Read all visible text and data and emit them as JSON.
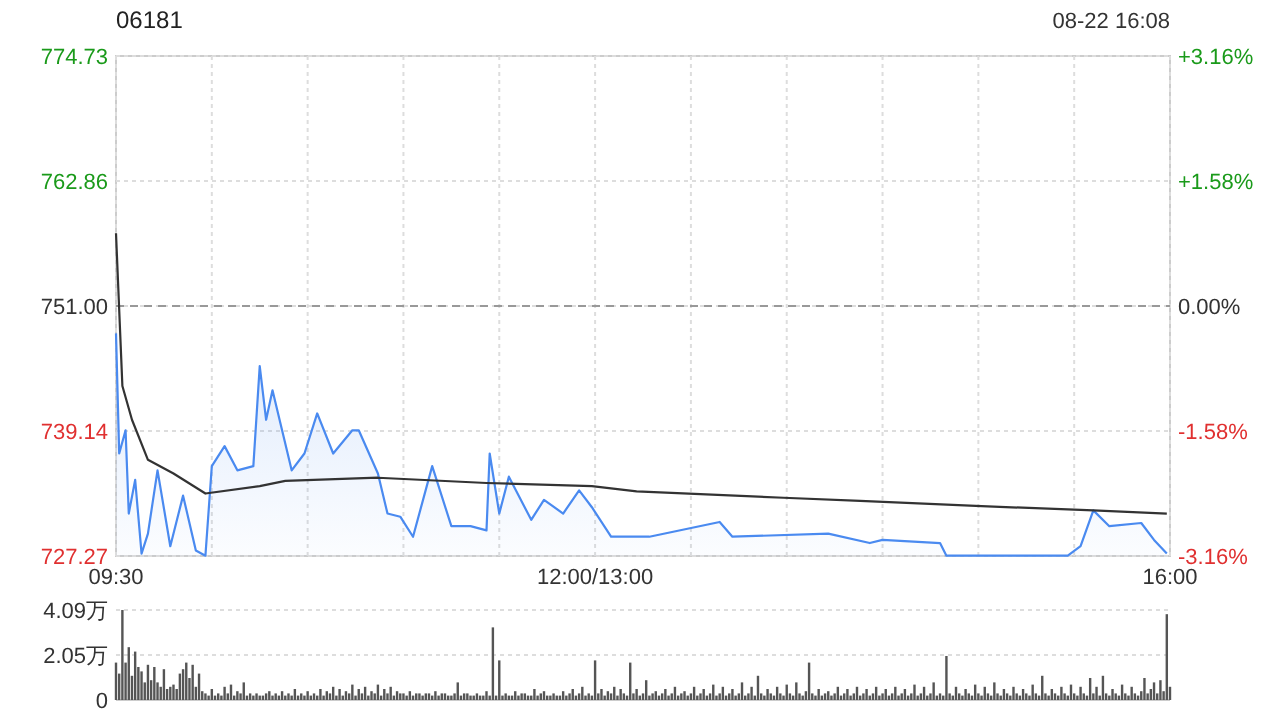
{
  "chart_data": {
    "type": "line",
    "title": "06181",
    "annotations": [
      "08-22 16:08"
    ],
    "categories": [
      "09:30",
      null,
      null,
      null,
      null,
      null,
      null,
      null,
      null,
      null,
      null,
      null,
      null,
      null,
      null,
      null,
      null,
      null,
      null,
      null,
      null,
      null,
      null,
      null,
      null,
      null,
      null,
      null,
      null,
      null,
      null,
      null,
      null,
      null,
      null,
      null,
      null,
      null,
      null,
      null,
      null,
      null,
      null,
      null,
      null,
      null,
      null,
      null,
      null,
      null,
      null,
      null,
      null,
      null,
      null,
      null,
      null,
      null,
      null,
      null,
      null,
      null,
      null,
      null,
      null,
      null,
      null,
      null,
      null,
      null,
      null,
      null,
      null,
      null,
      null,
      null,
      null,
      null,
      null,
      null,
      null,
      null,
      null,
      null,
      null,
      null,
      null,
      null,
      null,
      null,
      null,
      null,
      null,
      null,
      null,
      null,
      null,
      null,
      null,
      null,
      null,
      null,
      null,
      null,
      null,
      null,
      null,
      null,
      null,
      null,
      null,
      null,
      null,
      null,
      null,
      null,
      null,
      null,
      null,
      null,
      null,
      null,
      null,
      null,
      null,
      null,
      null,
      null,
      null,
      null,
      null,
      null,
      null,
      null,
      null,
      null,
      null,
      null,
      null,
      null,
      null,
      null,
      null,
      null,
      null,
      null,
      null,
      null,
      null,
      null,
      "12:00/13:00",
      null,
      null,
      null,
      null,
      null,
      null,
      null,
      null,
      null,
      null,
      null,
      null,
      null,
      null,
      null,
      null,
      null,
      null,
      null,
      null,
      null,
      null,
      null,
      null,
      null,
      null,
      null,
      null,
      null,
      null,
      null,
      null,
      null,
      null,
      null,
      null,
      null,
      null,
      null,
      null,
      null,
      null,
      null,
      null,
      null,
      null,
      null,
      null,
      null,
      null,
      null,
      null,
      null,
      null,
      null,
      null,
      null,
      null,
      null,
      null,
      null,
      null,
      null,
      null,
      null,
      null,
      null,
      null,
      null,
      null,
      null,
      null,
      null,
      null,
      null,
      null,
      null,
      null,
      null,
      null,
      null,
      null,
      null,
      null,
      null,
      null,
      null,
      null,
      null,
      null,
      null,
      null,
      null,
      null,
      null,
      null,
      null,
      null,
      null,
      null,
      null,
      null,
      null,
      null,
      null,
      null,
      null,
      null,
      null,
      null,
      null,
      null,
      null,
      null,
      null,
      null,
      null,
      null,
      null,
      null,
      null,
      null,
      null,
      null,
      null,
      null,
      null,
      null,
      null,
      null,
      null,
      null,
      null,
      null,
      null,
      null,
      null,
      null,
      null,
      null,
      null,
      null,
      null,
      null,
      null,
      null,
      null,
      null,
      null,
      null,
      null,
      null,
      null,
      null,
      null,
      null,
      null,
      null,
      null,
      null,
      null,
      null,
      null,
      null,
      null,
      null,
      null,
      null,
      null,
      null,
      null,
      null,
      null,
      null,
      null,
      null,
      null,
      null,
      null,
      "16:00"
    ],
    "ylim": [
      727.27,
      774.73
    ],
    "yticks": [
      727.27,
      739.14,
      {
        "value": 751,
        "label": "751.00"
      },
      762.86,
      774.73
    ],
    "y2lim": [
      -3.16,
      3.16
    ],
    "y2ticks": [
      {
        "value": -3.16,
        "label": "-3.16%"
      },
      {
        "value": -1.58,
        "label": "-1.58%"
      },
      {
        "value": 0,
        "label": "0.00%"
      },
      {
        "value": 1.58,
        "label": "+1.58%"
      },
      {
        "value": 3.16,
        "label": "+3.16%"
      }
    ],
    "y3lim": [
      0,
      4.09
    ],
    "y3ticks": [
      0,
      {
        "value": 2.05,
        "label": "2.05万"
      },
      {
        "value": 4.09,
        "label": "4.09万"
      }
    ],
    "grid": true,
    "marker": "none",
    "ref_lines": [
      {
        "axis": "y",
        "value": 751,
        "color": "#999999",
        "line_style": "dashed"
      }
    ],
    "series": [
      {
        "type": "area",
        "color": "#4a8af0",
        "values": [
          748.4,
          737.0,
          null,
          739.2,
          731.3,
          null,
          734.5,
          null,
          727.5,
          null,
          729.4,
          null,
          null,
          735.4,
          null,
          null,
          null,
          728.2,
          null,
          null,
          null,
          733.0,
          null,
          null,
          null,
          727.8,
          null,
          null,
          727.3,
          null,
          735.8,
          null,
          null,
          null,
          737.7,
          null,
          null,
          null,
          735.4,
          null,
          null,
          null,
          null,
          735.8,
          null,
          745.3,
          null,
          740.2,
          null,
          743.0,
          null,
          null,
          null,
          null,
          null,
          735.4,
          null,
          null,
          null,
          737.0,
          null,
          null,
          null,
          740.8,
          null,
          null,
          null,
          null,
          737.0,
          null,
          null,
          null,
          null,
          null,
          739.2,
          null,
          739.2,
          null,
          null,
          null,
          null,
          null,
          735.1,
          null,
          null,
          731.3,
          null,
          null,
          null,
          731.0,
          null,
          null,
          null,
          729.1,
          null,
          null,
          null,
          null,
          null,
          735.8,
          null,
          null,
          null,
          null,
          null,
          730.1,
          null,
          null,
          null,
          null,
          null,
          730.1,
          null,
          null,
          null,
          null,
          729.7,
          737.0,
          null,
          null,
          731.3,
          null,
          null,
          734.8,
          null,
          null,
          null,
          null,
          null,
          null,
          730.7,
          null,
          null,
          null,
          732.6,
          null,
          null,
          null,
          null,
          null,
          731.3,
          null,
          null,
          null,
          null,
          733.5,
          null,
          null,
          null,
          731.9,
          null,
          null,
          null,
          null,
          null,
          729.1,
          null,
          null,
          null,
          null,
          null,
          null,
          null,
          null,
          null,
          null,
          null,
          729.1,
          null,
          null,
          null,
          null,
          null,
          null,
          null,
          null,
          null,
          null,
          null,
          null,
          null,
          null,
          null,
          null,
          null,
          null,
          null,
          null,
          null,
          730.5,
          null,
          null,
          null,
          729.1,
          null,
          null,
          null,
          null,
          null,
          null,
          null,
          null,
          null,
          null,
          null,
          null,
          null,
          null,
          null,
          null,
          null,
          null,
          null,
          null,
          null,
          null,
          null,
          null,
          null,
          null,
          null,
          null,
          null,
          729.4,
          null,
          null,
          null,
          null,
          null,
          null,
          null,
          null,
          null,
          null,
          null,
          null,
          728.5,
          null,
          null,
          null,
          728.8,
          null,
          null,
          null,
          null,
          null,
          null,
          null,
          null,
          null,
          null,
          null,
          null,
          null,
          null,
          null,
          null,
          null,
          728.5,
          null,
          727.3,
          null,
          null,
          null,
          null,
          null,
          null,
          null,
          null,
          null,
          null,
          null,
          null,
          null,
          null,
          null,
          null,
          null,
          null,
          null,
          null,
          null,
          null,
          null,
          null,
          null,
          null,
          null,
          null,
          null,
          null,
          null,
          null,
          null,
          null,
          null,
          null,
          null,
          727.3,
          null,
          null,
          null,
          728.2,
          null,
          null,
          null,
          731.6,
          null,
          null,
          null,
          null,
          730.1,
          null,
          null,
          null,
          null,
          null,
          null,
          null,
          null,
          null,
          730.4,
          null,
          null,
          null,
          728.8,
          null,
          null,
          null,
          727.5,
          null
        ]
      },
      {
        "color": "#333333",
        "values": [
          757.9,
          null,
          743.4,
          null,
          null,
          740.2,
          null,
          null,
          null,
          null,
          736.4,
          null,
          null,
          null,
          null,
          null,
          null,
          null,
          735.1,
          null,
          null,
          null,
          null,
          null,
          null,
          null,
          null,
          null,
          733.2,
          null,
          null,
          null,
          null,
          null,
          null,
          null,
          null,
          null,
          null,
          null,
          null,
          null,
          null,
          null,
          null,
          733.9,
          null,
          null,
          null,
          null,
          null,
          null,
          null,
          734.4,
          null,
          null,
          null,
          null,
          null,
          null,
          null,
          null,
          null,
          null,
          null,
          null,
          null,
          null,
          null,
          null,
          null,
          null,
          null,
          null,
          null,
          null,
          null,
          null,
          null,
          null,
          null,
          null,
          734.7,
          null,
          null,
          null,
          null,
          null,
          null,
          null,
          null,
          null,
          null,
          null,
          null,
          null,
          null,
          null,
          null,
          null,
          null,
          null,
          null,
          null,
          null,
          null,
          null,
          null,
          null,
          null,
          null,
          null,
          null,
          null,
          null,
          null,
          734.2,
          null,
          null,
          null,
          null,
          null,
          null,
          null,
          null,
          null,
          null,
          null,
          null,
          null,
          null,
          null,
          null,
          null,
          null,
          null,
          null,
          null,
          null,
          null,
          null,
          null,
          null,
          null,
          null,
          null,
          null,
          null,
          null,
          733.9,
          null,
          null,
          null,
          null,
          null,
          null,
          null,
          null,
          null,
          null,
          null,
          null,
          null,
          733.4,
          null,
          null,
          null,
          null,
          null,
          null,
          null,
          null,
          null,
          null,
          null,
          null,
          null,
          null,
          null,
          null,
          null,
          null,
          null,
          null,
          null,
          null,
          null,
          null,
          null,
          null,
          null,
          null,
          null,
          null,
          null,
          null,
          null,
          null,
          null,
          null,
          null,
          null,
          null,
          null,
          null,
          null,
          null,
          null,
          null,
          732.8,
          null,
          null,
          null,
          null,
          null,
          null,
          null,
          null,
          null,
          null,
          null,
          null,
          null,
          null,
          null,
          null,
          null,
          null,
          null,
          null,
          null,
          null,
          null,
          732.5,
          null,
          null,
          null,
          null,
          null,
          null,
          null,
          null,
          null,
          null,
          null,
          null,
          null,
          null,
          null,
          null,
          null,
          null,
          null,
          null,
          null,
          null,
          null,
          null,
          null,
          null,
          null,
          null,
          null,
          null,
          null,
          null,
          null,
          null,
          null,
          null,
          null,
          732.0,
          null,
          null,
          null,
          null,
          null,
          null,
          null,
          null,
          null,
          null,
          null,
          null,
          null,
          null,
          null,
          null,
          null,
          null,
          null,
          null,
          null,
          null,
          null,
          null,
          null,
          null,
          null,
          null,
          null,
          null,
          null,
          null,
          null,
          null,
          731.6,
          null,
          null,
          null,
          null,
          null,
          null,
          null,
          null,
          null,
          null,
          null,
          null,
          null,
          null,
          null,
          null,
          null,
          null,
          null,
          null,
          null,
          null,
          731.3,
          null
        ]
      },
      {
        "type": "bar",
        "axis": "y3",
        "color": "#555555",
        "values": [
          1.7,
          1.2,
          4.09,
          1.7,
          2.4,
          1.1,
          2.2,
          1.5,
          1.3,
          0.8,
          1.6,
          0.9,
          1.5,
          0.8,
          0.6,
          1.4,
          0.5,
          0.6,
          0.7,
          0.5,
          1.2,
          1.4,
          1.7,
          1.0,
          1.6,
          0.6,
          1.2,
          0.4,
          0.3,
          0.2,
          0.5,
          0.2,
          0.3,
          0.2,
          0.6,
          0.3,
          0.7,
          0.2,
          0.4,
          0.3,
          0.8,
          0.2,
          0.3,
          0.2,
          0.3,
          0.2,
          0.2,
          0.3,
          0.4,
          0.2,
          0.3,
          0.2,
          0.4,
          0.2,
          0.3,
          0.2,
          0.5,
          0.2,
          0.3,
          0.2,
          0.4,
          0.2,
          0.3,
          0.2,
          0.5,
          0.2,
          0.4,
          0.3,
          0.6,
          0.2,
          0.5,
          0.2,
          0.4,
          0.3,
          0.7,
          0.2,
          0.5,
          0.3,
          0.6,
          0.2,
          0.4,
          0.3,
          0.7,
          0.2,
          0.5,
          0.3,
          0.6,
          0.2,
          0.4,
          0.3,
          0.3,
          0.2,
          0.4,
          0.2,
          0.3,
          0.3,
          0.2,
          0.3,
          0.3,
          0.2,
          0.4,
          0.2,
          0.3,
          0.3,
          0.2,
          0.2,
          0.3,
          0.8,
          0.2,
          0.3,
          0.3,
          0.2,
          0.2,
          0.3,
          0.2,
          0.2,
          0.4,
          0.2,
          3.3,
          0.2,
          1.8,
          0.2,
          0.3,
          0.2,
          0.2,
          0.4,
          0.2,
          0.3,
          0.3,
          0.2,
          0.2,
          0.5,
          0.2,
          0.3,
          0.4,
          0.2,
          0.2,
          0.3,
          0.2,
          0.2,
          0.4,
          0.2,
          0.3,
          0.5,
          0.2,
          0.3,
          0.6,
          0.2,
          0.3,
          0.2,
          1.8,
          0.3,
          0.5,
          0.2,
          0.4,
          0.3,
          0.6,
          0.2,
          0.5,
          0.3,
          0.2,
          1.7,
          0.3,
          0.5,
          0.2,
          0.3,
          0.9,
          0.2,
          0.3,
          0.4,
          0.2,
          0.3,
          0.5,
          0.2,
          0.3,
          0.6,
          0.2,
          0.3,
          0.4,
          0.2,
          0.3,
          0.6,
          0.2,
          0.3,
          0.5,
          0.2,
          0.3,
          0.7,
          0.2,
          0.3,
          0.6,
          0.2,
          0.3,
          0.5,
          0.2,
          0.3,
          0.8,
          0.2,
          0.3,
          0.6,
          0.2,
          1.1,
          0.3,
          0.2,
          0.5,
          0.3,
          0.2,
          0.6,
          0.3,
          0.2,
          0.7,
          0.3,
          0.2,
          0.8,
          0.3,
          0.2,
          0.4,
          1.7,
          0.3,
          0.2,
          0.5,
          0.2,
          0.3,
          0.4,
          0.2,
          0.3,
          0.6,
          0.2,
          0.3,
          0.5,
          0.2,
          0.3,
          0.6,
          0.2,
          0.3,
          0.5,
          0.2,
          0.3,
          0.6,
          0.2,
          0.3,
          0.5,
          0.2,
          0.3,
          0.6,
          0.2,
          0.3,
          0.5,
          0.2,
          0.3,
          0.7,
          0.2,
          0.3,
          0.6,
          0.2,
          0.3,
          0.8,
          0.2,
          0.3,
          0.2,
          2.0,
          0.3,
          0.2,
          0.6,
          0.3,
          0.2,
          0.5,
          0.3,
          0.2,
          0.7,
          0.3,
          0.2,
          0.6,
          0.3,
          0.2,
          0.8,
          0.3,
          0.2,
          0.5,
          0.3,
          0.2,
          0.6,
          0.3,
          0.2,
          0.5,
          0.3,
          0.2,
          0.7,
          0.3,
          0.2,
          1.1,
          0.3,
          0.2,
          0.5,
          0.3,
          0.2,
          0.6,
          0.3,
          0.2,
          0.7,
          0.3,
          0.2,
          0.6,
          0.3,
          0.2,
          1.0,
          0.3,
          0.6,
          0.2,
          1.1,
          0.3,
          0.2,
          0.5,
          0.3,
          0.2,
          0.7,
          0.3,
          0.2,
          0.6,
          0.3,
          0.2,
          0.4,
          1.0,
          0.3,
          0.5,
          0.8,
          0.3,
          0.9,
          0.4,
          3.9,
          0.6
        ]
      }
    ]
  }
}
